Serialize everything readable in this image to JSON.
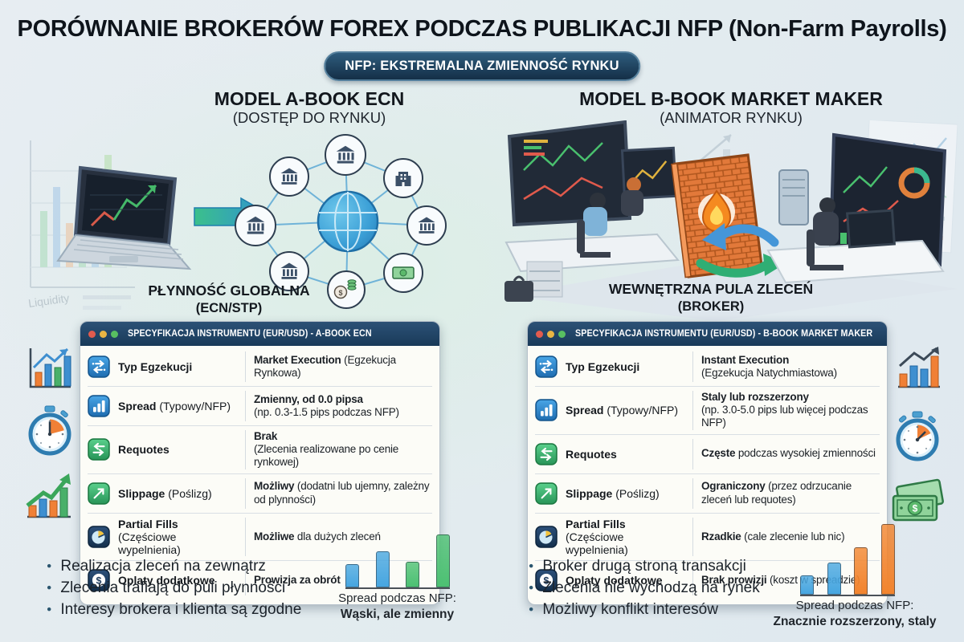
{
  "title": "PORÓWNANIE BROKERÓW FOREX PODCZAS PUBLIKACJI NFP (Non-Farm Payrolls)",
  "badge": "NFP: EKSTREMALNA ZMIENNOŚĆ RYNKU",
  "columns": {
    "left": {
      "heading": "MODEL A-BOOK ECN",
      "subheading": "(DOSTĘP DO RYNKU)",
      "diagram_label": "PŁYNNOŚĆ GLOBALNA",
      "diagram_sublabel": "(ECN/STP)",
      "panel": {
        "title": "SPECYFIKACJA INSTRUMENTU (EUR/USD) - A-BOOK ECN",
        "rows": [
          {
            "icon": "execution-type-icon",
            "label_bold": "Typ Egzekucji",
            "label_rest": "",
            "label_line2": "",
            "value_bold": "Market Execution",
            "value_rest": " (Egzekucja Rynkowa)",
            "value_line2": ""
          },
          {
            "icon": "spread-bars-icon",
            "label_bold": "Spread",
            "label_rest": " (Typowy/NFP)",
            "label_line2": "",
            "value_bold": "Zmienny, od 0.0 pipsa",
            "value_rest": "",
            "value_line2": "(np. 0.3-1.5 pips podczas NFP)"
          },
          {
            "icon": "requotes-arrows-icon",
            "label_bold": "Requotes",
            "label_rest": "",
            "label_line2": "",
            "value_bold": "Brak",
            "value_rest": "",
            "value_line2": "(Zlecenia realizowane po cenie rynkowej)"
          },
          {
            "icon": "slippage-arrow-icon",
            "label_bold": "Slippage",
            "label_rest": " (Poślizg)",
            "label_line2": "",
            "value_bold": "Możliwy",
            "value_rest": " (dodatni lub ujemny, zależny od plynności)",
            "value_line2": ""
          },
          {
            "icon": "partial-fills-pie-icon",
            "label_bold": "Partial Fills",
            "label_rest": "",
            "label_line2": "(Częściowe wypelnienia)",
            "value_bold": "Możliwe",
            "value_rest": " dla dużych zleceń",
            "value_line2": ""
          },
          {
            "icon": "fees-dollar-icon",
            "label_bold": "Oplaty dodatkowe",
            "label_rest": "",
            "label_line2": "",
            "value_bold": "Prowizja za obrót",
            "value_rest": "",
            "value_line2": ""
          }
        ]
      },
      "bullets": [
        "Realizacja zleceń na zewnątrz",
        "Zlecenia trafiają do puli płynności",
        "Interesy brokera i klienta są zgodne"
      ],
      "spread_chart": {
        "caption": "Spread podczas NFP:",
        "caption_bold": "Wąski, ale zmienny"
      }
    },
    "right": {
      "heading": "MODEL B-BOOK MARKET MAKER",
      "subheading": "(ANIMATOR RYNKU)",
      "diagram_label": "WEWNĘTRZNA PULA ZLECEŃ",
      "diagram_sublabel": "(BROKER)",
      "panel": {
        "title": "SPECYFIKACJA INSTRUMENTU (EUR/USD) - B-BOOK MARKET MAKER",
        "rows": [
          {
            "icon": "execution-type-icon",
            "label_bold": "Typ Egzekucji",
            "label_rest": "",
            "label_line2": "",
            "value_bold": "Instant Execution",
            "value_rest": "",
            "value_line2": "(Egzekucja Natychmiastowa)"
          },
          {
            "icon": "spread-bars-icon",
            "label_bold": "Spread",
            "label_rest": " (Typowy/NFP)",
            "label_line2": "",
            "value_bold": "Staly lub rozszerzony",
            "value_rest": "",
            "value_line2": "(np. 3.0-5.0 pips lub więcej podczas NFP)"
          },
          {
            "icon": "requotes-arrows-icon",
            "label_bold": "Requotes",
            "label_rest": "",
            "label_line2": "",
            "value_bold": "Częste",
            "value_rest": " podczas wysokiej zmienności",
            "value_line2": ""
          },
          {
            "icon": "slippage-arrow-icon",
            "label_bold": "Slippage",
            "label_rest": " (Poślizg)",
            "label_line2": "",
            "value_bold": "Ograniczony",
            "value_rest": " (przez odrzucanie zleceń lub requotes)",
            "value_line2": ""
          },
          {
            "icon": "partial-fills-pie-icon",
            "label_bold": "Partial Fills",
            "label_rest": "",
            "label_line2": "(Częściowe wypelnienia)",
            "value_bold": "Rzadkie",
            "value_rest": " (cale zlecenie lub nic)",
            "value_line2": ""
          },
          {
            "icon": "fees-dollar-icon",
            "label_bold": "Oplaty dodatkowe",
            "label_rest": "",
            "label_line2": "",
            "value_bold": "Brak prowizji",
            "value_rest": " (koszt w spreadzie)",
            "value_line2": ""
          }
        ]
      },
      "bullets": [
        "Broker drugą stroną transakcji",
        "Zlecenia nie wychodzą na rynek",
        "Możliwy konflikt interesów"
      ],
      "spread_chart": {
        "caption": "Spread podczas NFP:",
        "caption_bold": "Znacznie rozszerzony, staly"
      }
    }
  },
  "chart_data": [
    {
      "type": "bar",
      "title": "Spread podczas NFP: Wąski, ale zmienny (A-Book ECN)",
      "categories": [
        "bar1",
        "bar2",
        "bar3",
        "bar4"
      ],
      "values": [
        27,
        42,
        30,
        62
      ],
      "colors": [
        "#47a6e0",
        "#47a6e0",
        "#4cc072",
        "#4cc072"
      ],
      "unit": "relative spread height",
      "grid": false,
      "legend": "none"
    },
    {
      "type": "bar",
      "title": "Spread podczas NFP: Znacznie rozszerzony, staly (B-Book Market Maker)",
      "categories": [
        "bar1",
        "bar2",
        "bar3",
        "bar4"
      ],
      "values": [
        26,
        44,
        64,
        95
      ],
      "colors": [
        "#47a6e0",
        "#47a6e0",
        "#f2842e",
        "#f2842e"
      ],
      "unit": "relative spread height",
      "grid": false,
      "legend": "none"
    }
  ],
  "icons": {
    "window_controls": [
      "red-dot-icon",
      "yellow-dot-icon",
      "green-dot-icon"
    ],
    "left_scene": [
      "laptop-chart-icon",
      "flow-arrow-icon",
      "globe-icon",
      "bank-icon",
      "building-icon",
      "money-bill-icon",
      "money-bag-icon"
    ],
    "right_scene": [
      "trader-desk-icon",
      "monitor-chart-icon",
      "brick-wall-icon",
      "flame-icon",
      "swap-arrows-icon"
    ],
    "left_margin": [
      "bar-chart-trend-icon",
      "stopwatch-icon",
      "growth-arrow-chart-icon"
    ],
    "right_margin": [
      "bar-chart-trend-icon",
      "stopwatch-icon",
      "money-bills-icon"
    ]
  },
  "colors": {
    "header_navy": "#1d3c5c",
    "accent_blue": "#2f8fd8",
    "accent_green": "#43c078",
    "accent_orange": "#f2842e",
    "panel_bg": "#fcfcf7",
    "badge_navy": "#142f47"
  }
}
